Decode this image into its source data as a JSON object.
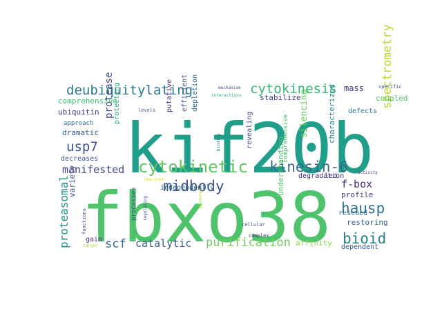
{
  "words": [
    {
      "text": "fbxo38",
      "color": "#4ec36b"
    },
    {
      "text": "kif20b",
      "color": "#1f9e89"
    },
    {
      "text": "cytokinetic",
      "color": "#5ec962"
    },
    {
      "text": "deubiquitylating",
      "color": "#2a788e"
    },
    {
      "text": "cytokinesis",
      "color": "#35b779"
    },
    {
      "text": "kinesin-6",
      "color": "#31688e"
    },
    {
      "text": "midbody",
      "color": "#39568c"
    },
    {
      "text": "purification",
      "color": "#6ece58"
    },
    {
      "text": "hausp",
      "color": "#2c728e"
    },
    {
      "text": "bioid",
      "color": "#26828e"
    },
    {
      "text": "spectrometry",
      "color": "#b5de2b"
    },
    {
      "text": "usp7",
      "color": "#3b528b"
    },
    {
      "text": "proteasomal",
      "color": "#21918c"
    },
    {
      "text": "manifested",
      "color": "#404688"
    },
    {
      "text": "protease",
      "color": "#3e4a89"
    },
    {
      "text": "catalytic",
      "color": "#355f8d"
    },
    {
      "text": "scf",
      "color": "#306a8e"
    },
    {
      "text": "f-box",
      "color": "#472d7b"
    },
    {
      "text": "mass",
      "color": "#46337e"
    },
    {
      "text": "coupled",
      "color": "#52c569"
    },
    {
      "text": "stabilize",
      "color": "#414487"
    },
    {
      "text": "silencing",
      "color": "#6ccd5a"
    },
    {
      "text": "revealing",
      "color": "#3f4788"
    },
    {
      "text": "efficient",
      "color": "#3b518b"
    },
    {
      "text": "depletion",
      "color": "#31688e"
    },
    {
      "text": "putative",
      "color": "#482878"
    },
    {
      "text": "characterized",
      "color": "#25848e"
    },
    {
      "text": "ubiquitin",
      "color": "#443983"
    },
    {
      "text": "comprehensive",
      "color": "#3dbc74"
    },
    {
      "text": "approach",
      "color": "#2e6e8e"
    },
    {
      "text": "dramatic",
      "color": "#375b8d"
    },
    {
      "text": "protecting",
      "color": "#25ac82"
    },
    {
      "text": "variety",
      "color": "#3d4e8a"
    },
    {
      "text": "decreases",
      "color": "#38588c"
    },
    {
      "text": "gain",
      "color": "#4e2d7a"
    },
    {
      "text": "comprehensive",
      "color": "#47c16e"
    },
    {
      "text": "profile",
      "color": "#453882"
    },
    {
      "text": "rescued",
      "color": "#2e6f8e"
    },
    {
      "text": "restoring",
      "color": "#355f8d"
    },
    {
      "text": "affinity",
      "color": "#8ed645"
    },
    {
      "text": "dependent",
      "color": "#3a548c"
    },
    {
      "text": "understanding",
      "color": "#50c46a"
    },
    {
      "text": "degradation",
      "color": "#472c7a"
    },
    {
      "text": "led",
      "color": "#3e4989"
    },
    {
      "text": "defects",
      "color": "#2a778e"
    },
    {
      "text": "independently",
      "color": "#34618d"
    },
    {
      "text": "processes",
      "color": "#3c4f8a"
    },
    {
      "text": "functions",
      "color": "#404588"
    },
    {
      "text": "cellular",
      "color": "#3f4889"
    },
    {
      "text": "complex",
      "color": "#46317e"
    },
    {
      "text": "specific",
      "color": "#3e4c8a"
    },
    {
      "text": "mechanism",
      "color": "#3a548c"
    },
    {
      "text": "interactions",
      "color": "#27ad81"
    },
    {
      "text": "levels",
      "color": "#3b528b"
    },
    {
      "text": "binding",
      "color": "#2b758e"
    },
    {
      "text": "regulating",
      "color": "#3b518b"
    },
    {
      "text": "required",
      "color": "#d8e219"
    },
    {
      "text": "activity",
      "color": "#3e4989"
    },
    {
      "text": "target",
      "color": "#addc30"
    },
    {
      "text": "promotes",
      "color": "#bade28"
    }
  ]
}
